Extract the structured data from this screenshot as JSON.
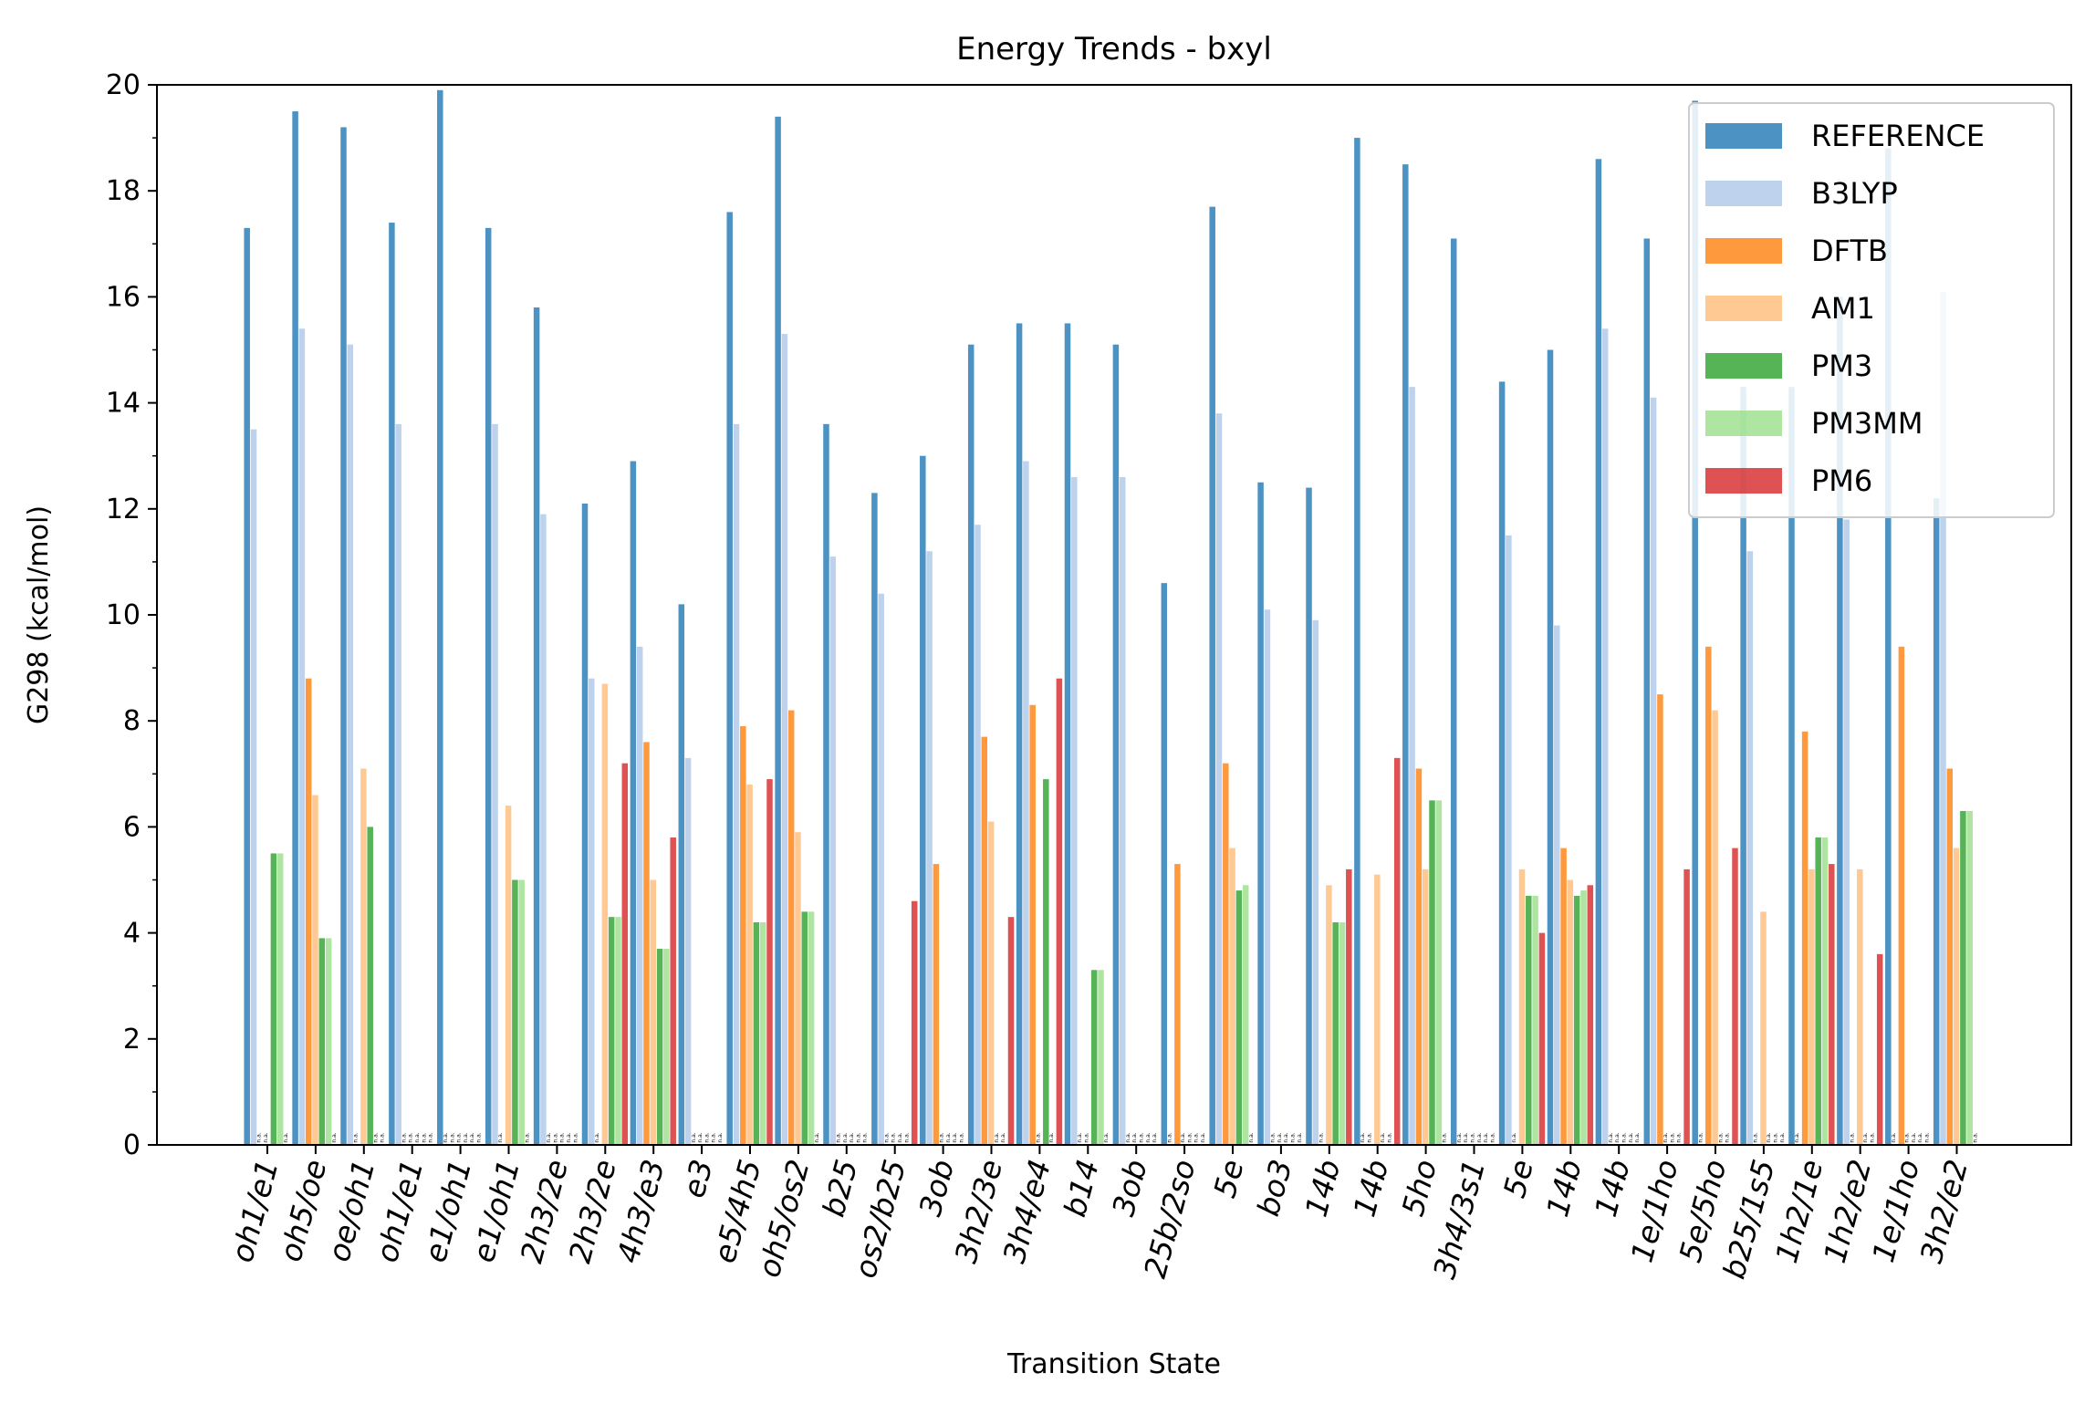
{
  "chart_data": {
    "type": "bar",
    "title": "Energy Trends - bxyl",
    "xlabel": "Transition State",
    "ylabel": "G298 (kcal/mol)",
    "ylim": [
      0,
      20
    ],
    "yticks": [
      0,
      2,
      4,
      6,
      8,
      10,
      12,
      14,
      16,
      18,
      20
    ],
    "grid": false,
    "legend_position": "top-right",
    "na_label": "n.a.",
    "categories": [
      "oh1/e1",
      "oh5/oe",
      "oe/oh1",
      "oh1/e1",
      "e1/oh1",
      "e1/oh1",
      "2h3/2e",
      "2h3/2e",
      "4h3/e3",
      "e3",
      "e5/4h5",
      "oh5/os2",
      "b25",
      "os2/b25",
      "3ob",
      "3h2/3e",
      "3h4/e4",
      "b14",
      "3ob",
      "25b/2so",
      "5e",
      "bo3",
      "14b",
      "14b",
      "5ho",
      "3h4/3s1",
      "5e",
      "14b",
      "14b",
      "1e/1ho",
      "5e/5ho",
      "b25/1s5",
      "1h2/1e",
      "1h2/e2",
      "1e/1ho",
      "3h2/e2"
    ],
    "series": [
      {
        "name": "REFERENCE",
        "color": "#1f77b4",
        "values": [
          17.3,
          19.5,
          19.2,
          17.4,
          19.9,
          17.3,
          15.8,
          12.1,
          12.9,
          10.2,
          17.6,
          19.4,
          13.6,
          12.3,
          13.0,
          15.1,
          15.5,
          15.5,
          15.1,
          10.6,
          17.7,
          12.5,
          12.4,
          19.0,
          18.5,
          17.1,
          14.4,
          15.0,
          18.6,
          17.1,
          19.7,
          14.3,
          14.3,
          16.0,
          18.8,
          12.2
        ]
      },
      {
        "name": "B3LYP",
        "color": "#aec7e8",
        "values": [
          13.5,
          15.4,
          15.1,
          13.6,
          null,
          13.6,
          11.9,
          8.8,
          9.4,
          7.3,
          13.6,
          15.3,
          11.1,
          10.4,
          11.2,
          11.7,
          12.9,
          12.6,
          12.6,
          null,
          13.8,
          10.1,
          9.9,
          null,
          14.3,
          null,
          11.5,
          9.8,
          15.4,
          14.1,
          null,
          11.2,
          null,
          11.8,
          null,
          16.1
        ]
      },
      {
        "name": "DFTB",
        "color": "#ff7f0e",
        "values": [
          null,
          8.8,
          null,
          null,
          null,
          null,
          null,
          null,
          7.6,
          null,
          7.9,
          8.2,
          null,
          null,
          5.3,
          7.7,
          8.3,
          null,
          null,
          5.3,
          7.2,
          null,
          null,
          null,
          7.1,
          null,
          null,
          5.6,
          null,
          8.5,
          9.4,
          null,
          7.8,
          null,
          9.4,
          7.1
        ]
      },
      {
        "name": "AM1",
        "color": "#ffbb78",
        "values": [
          null,
          6.6,
          7.1,
          null,
          null,
          6.4,
          null,
          8.7,
          5.0,
          null,
          6.8,
          5.9,
          null,
          null,
          null,
          6.1,
          null,
          null,
          null,
          null,
          5.6,
          null,
          4.9,
          5.1,
          5.2,
          null,
          5.2,
          5.0,
          null,
          null,
          8.2,
          4.4,
          5.2,
          5.2,
          null,
          5.6
        ]
      },
      {
        "name": "PM3",
        "color": "#2ca02c",
        "values": [
          5.5,
          3.9,
          6.0,
          null,
          null,
          5.0,
          null,
          4.3,
          3.7,
          null,
          4.2,
          4.4,
          null,
          null,
          null,
          null,
          6.9,
          3.3,
          null,
          null,
          4.8,
          null,
          4.2,
          null,
          6.5,
          null,
          4.7,
          4.7,
          null,
          null,
          null,
          null,
          5.8,
          null,
          null,
          6.3
        ]
      },
      {
        "name": "PM3MM",
        "color": "#98df8a",
        "values": [
          5.5,
          3.9,
          null,
          null,
          null,
          5.0,
          null,
          4.3,
          3.7,
          null,
          4.2,
          4.4,
          null,
          null,
          null,
          null,
          null,
          3.3,
          null,
          null,
          4.9,
          null,
          4.2,
          null,
          6.5,
          null,
          4.7,
          4.8,
          null,
          null,
          null,
          null,
          5.8,
          null,
          null,
          6.3
        ]
      },
      {
        "name": "PM6",
        "color": "#d62728",
        "values": [
          null,
          null,
          null,
          null,
          null,
          null,
          null,
          7.2,
          5.8,
          null,
          6.9,
          null,
          null,
          4.6,
          null,
          4.3,
          8.8,
          null,
          null,
          null,
          null,
          null,
          5.2,
          7.3,
          null,
          null,
          4.0,
          4.9,
          null,
          5.2,
          5.6,
          null,
          5.3,
          3.6,
          null,
          null
        ]
      }
    ]
  }
}
